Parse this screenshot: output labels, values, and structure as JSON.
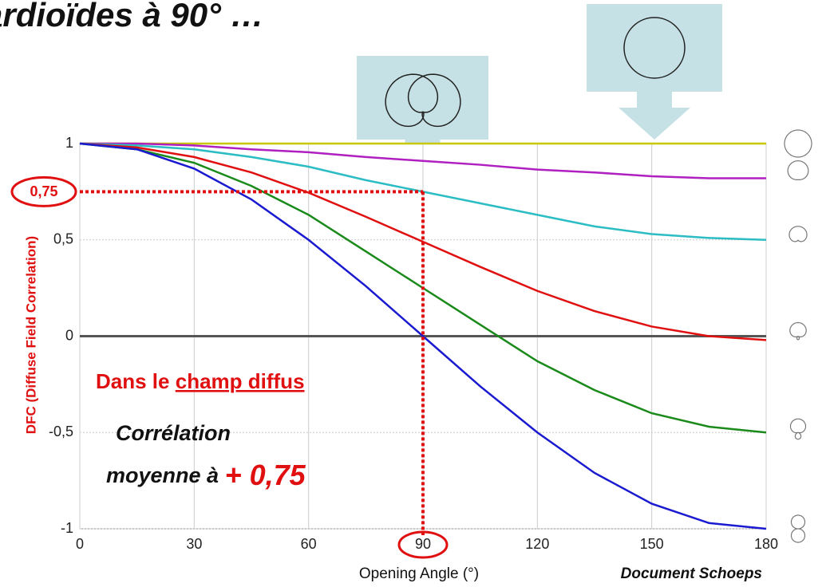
{
  "chart_data": {
    "type": "line",
    "title": "ardioïdes à 90° …",
    "y_label": "DFC (Diffuse Field Correlation)",
    "x_label": "Opening Angle (°)",
    "source": "Document Schoeps",
    "x": [
      0,
      15,
      30,
      45,
      60,
      75,
      90,
      105,
      120,
      135,
      150,
      165,
      180
    ],
    "xlim": [
      0,
      180
    ],
    "xticks": [
      0,
      30,
      60,
      90,
      120,
      150,
      180
    ],
    "ylim": [
      -1,
      1
    ],
    "yticks": [
      {
        "value": -1,
        "label": "-1"
      },
      {
        "value": -0.5,
        "label": "-0,5"
      },
      0,
      {
        "value": 0.5,
        "label": "0,5"
      },
      1
    ],
    "grid": true,
    "series": [
      {
        "color": "#c8c800",
        "values": [
          1,
          1,
          1,
          1,
          1,
          1,
          1,
          1,
          1,
          1,
          1,
          1,
          1
        ]
      },
      {
        "color": "#b01fc0",
        "values": [
          1,
          1,
          0.99,
          0.97,
          0.955,
          0.93,
          0.91,
          0.89,
          0.865,
          0.85,
          0.83,
          0.82,
          0.82
        ]
      },
      {
        "color": "#2bbcc4",
        "values": [
          1,
          0.99,
          0.97,
          0.93,
          0.88,
          0.81,
          0.75,
          0.69,
          0.63,
          0.57,
          0.53,
          0.51,
          0.5
        ]
      },
      {
        "color": "#e01010",
        "values": [
          1,
          0.98,
          0.93,
          0.85,
          0.745,
          0.62,
          0.49,
          0.36,
          0.235,
          0.13,
          0.05,
          0.0,
          -0.02
        ]
      },
      {
        "color": "#1a8a1a",
        "values": [
          1,
          0.97,
          0.9,
          0.78,
          0.63,
          0.44,
          0.25,
          0.06,
          -0.13,
          -0.28,
          -0.4,
          -0.47,
          -0.5
        ]
      },
      {
        "color": "#1a1ad0",
        "values": [
          1,
          0.97,
          0.87,
          0.71,
          0.5,
          0.26,
          0,
          -0.26,
          -0.5,
          -0.71,
          -0.87,
          -0.97,
          -1
        ]
      }
    ],
    "highlight": {
      "x": 90,
      "y": 0.75,
      "y_label": "0,75"
    },
    "text_line1": "Dans le",
    "text_line1_underlined": "champ diffus",
    "text_line2": "Corrélation",
    "text_line3": "moyenne à",
    "text_line3_value": "+ 0,75"
  }
}
